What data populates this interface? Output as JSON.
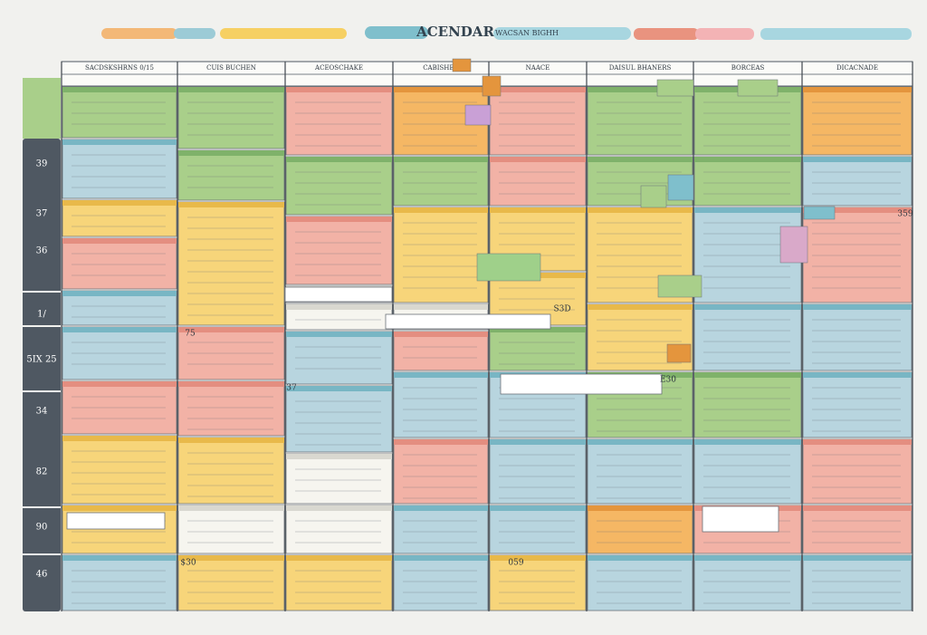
{
  "header": {
    "title": "ACENDAR",
    "subtitle": "WACSAN BIGHH"
  },
  "columns": [
    "SACDSKSHRNS 0/15",
    "CUIS BUCHEN",
    "ACEOSCHAKE",
    "CABISHER",
    "NAACE",
    "DAISUL BHANERS",
    "BORCEAS",
    "DICACNADE"
  ],
  "row_labels": [
    "39",
    "37",
    "36",
    "1/",
    "5IX 25",
    "34",
    "82",
    "90",
    "46"
  ],
  "notes": [
    "75",
    "37",
    "E30",
    "S3D",
    "359",
    "059",
    "$30"
  ]
}
